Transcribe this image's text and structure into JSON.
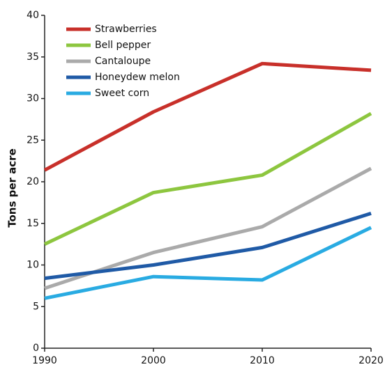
{
  "chart_data": {
    "type": "line",
    "y_label": "Tons per acre",
    "x": [
      1990,
      2000,
      2010,
      2020
    ],
    "series": [
      {
        "name": "Strawberries",
        "color": "#c8302a",
        "values": [
          21.4,
          28.4,
          34.2,
          33.4
        ]
      },
      {
        "name": "Bell pepper",
        "color": "#8dc63f",
        "values": [
          12.5,
          18.7,
          20.8,
          28.2
        ]
      },
      {
        "name": "Cantaloupe",
        "color": "#aaaaaa",
        "values": [
          7.2,
          11.5,
          14.6,
          21.6
        ]
      },
      {
        "name": "Honeydew melon",
        "color": "#1f5aa6",
        "values": [
          8.4,
          10.0,
          12.1,
          16.2
        ]
      },
      {
        "name": "Sweet corn",
        "color": "#29abe2",
        "values": [
          6.0,
          8.6,
          8.2,
          14.5
        ]
      }
    ],
    "xlim": [
      1990,
      2020
    ],
    "xticks": [
      1990,
      2000,
      2010,
      2020
    ],
    "ylim": [
      0,
      40
    ],
    "yticks": [
      0,
      5,
      10,
      15,
      20,
      25,
      30,
      35,
      40
    ],
    "grid": false,
    "legend": "upper left"
  }
}
